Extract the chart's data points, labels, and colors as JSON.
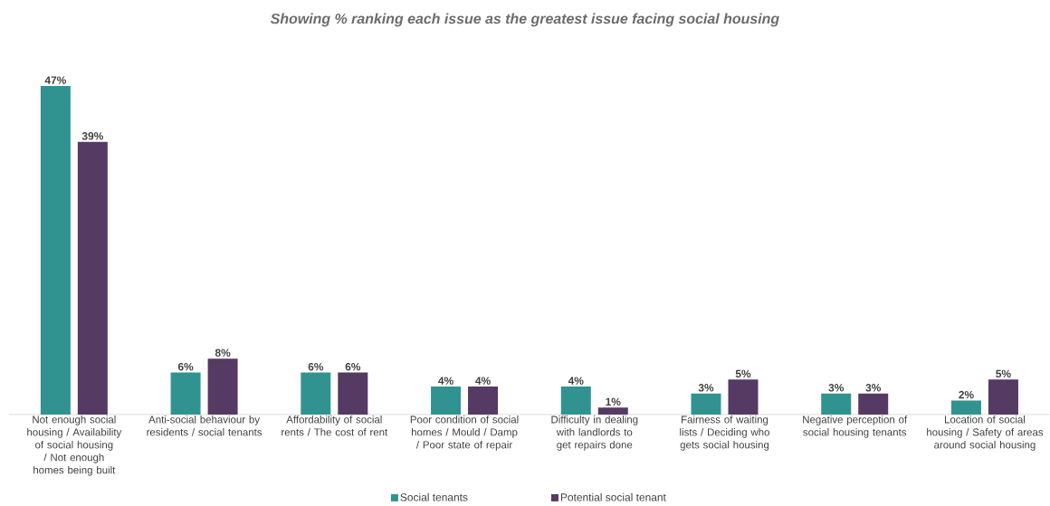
{
  "chart_data": {
    "type": "bar",
    "title": "Showing % ranking each issue as the greatest issue facing social housing",
    "categories": [
      "Not enough social housing / Availability of social housing / Not enough homes being built",
      "Anti-social behaviour by residents / social tenants",
      "Affordability of social rents / The cost of rent",
      "Poor condition of social homes / Mould / Damp / Poor state of repair",
      "Difficulty in dealing with landlords to get repairs done",
      "Fairness of waiting lists / Deciding who gets social housing",
      "Negative perception of social housing tenants",
      "Location of social housing / Safety of areas around social housing"
    ],
    "series": [
      {
        "name": "Social tenants",
        "color": "#31938f",
        "values": [
          47,
          6,
          6,
          4,
          4,
          3,
          3,
          2
        ],
        "value_labels": [
          "47%",
          "6%",
          "6%",
          "4%",
          "4%",
          "3%",
          "3%",
          "2%"
        ]
      },
      {
        "name": "Potential social tenant",
        "color": "#553a63",
        "values": [
          39,
          8,
          6,
          4,
          1,
          5,
          3,
          5
        ],
        "value_labels": [
          "39%",
          "8%",
          "6%",
          "4%",
          "1%",
          "5%",
          "3%",
          "5%"
        ]
      }
    ],
    "legend": "bottom"
  }
}
